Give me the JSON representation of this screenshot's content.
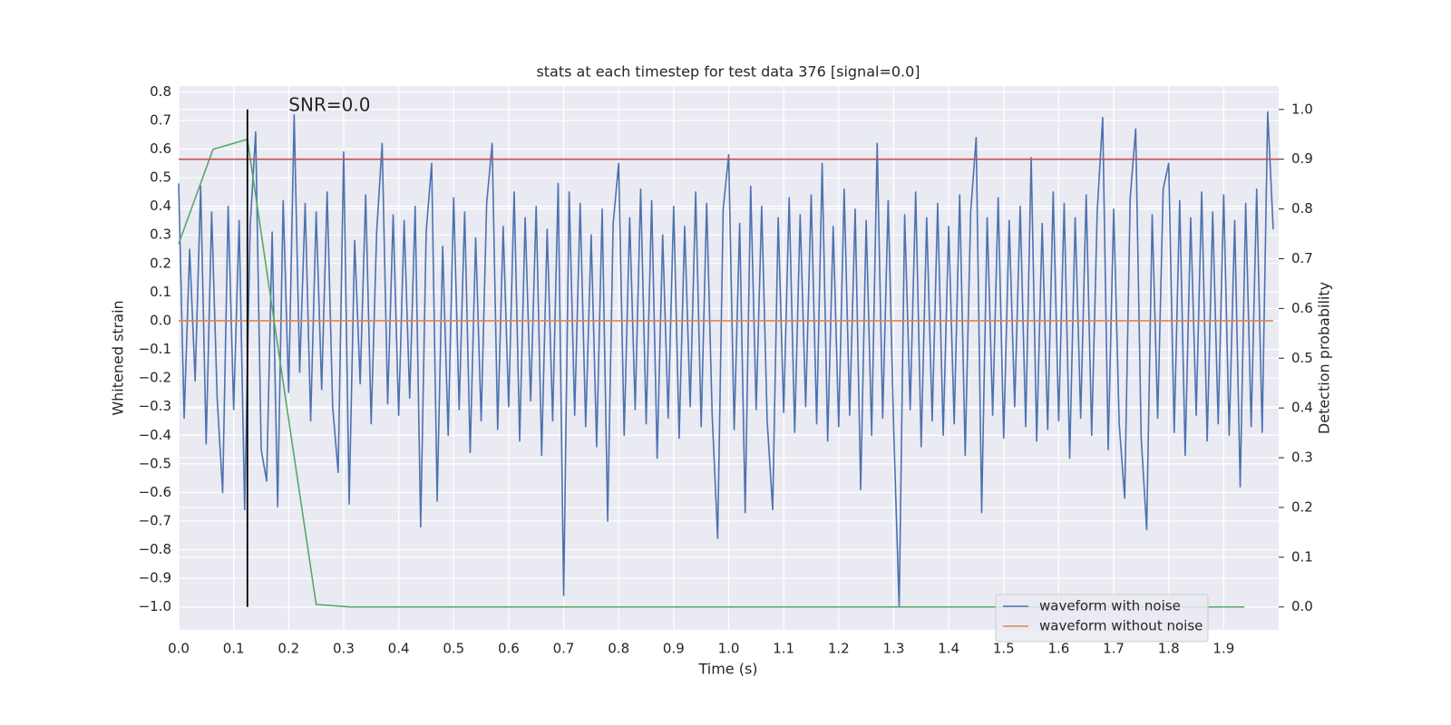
{
  "chart_data": {
    "type": "line",
    "title": "stats at each timestep for test data 376 [signal=0.0]",
    "xlabel": "Time (s)",
    "ylabel": "Whitened strain",
    "y2label": "Detection probability",
    "xlim": [
      0,
      2.0
    ],
    "ylim": [
      -1.08,
      0.82
    ],
    "y2lim": [
      -0.046,
      1.047
    ],
    "xticks": [
      {
        "value": 0,
        "label": "0.0"
      },
      0.1,
      0.2,
      0.3,
      0.4,
      0.5,
      0.6,
      0.7,
      0.8,
      0.9,
      {
        "value": 1,
        "label": "1.0"
      },
      1.1,
      1.2,
      1.3,
      1.4,
      1.5,
      1.6,
      1.7,
      1.8,
      1.9
    ],
    "yticks": [
      {
        "value": -1,
        "label": "−1.0"
      },
      {
        "value": -0.9,
        "label": "−0.9"
      },
      {
        "value": -0.8,
        "label": "−0.8"
      },
      {
        "value": -0.7,
        "label": "−0.7"
      },
      {
        "value": -0.6,
        "label": "−0.6"
      },
      {
        "value": -0.5,
        "label": "−0.5"
      },
      {
        "value": -0.4,
        "label": "−0.4"
      },
      {
        "value": -0.3,
        "label": "−0.3"
      },
      {
        "value": -0.2,
        "label": "−0.2"
      },
      {
        "value": -0.1,
        "label": "−0.1"
      },
      {
        "value": 0,
        "label": "0.0"
      },
      0.1,
      0.2,
      0.3,
      0.4,
      0.5,
      0.6,
      0.7,
      0.8
    ],
    "y2ticks": [
      {
        "value": 0,
        "label": "0.0"
      },
      0.1,
      0.2,
      0.3,
      0.4,
      0.5,
      0.6,
      0.7,
      0.8,
      0.9,
      {
        "value": 1,
        "label": "1.0"
      }
    ],
    "grid": true,
    "legend": "lower right",
    "series": [
      {
        "name": "waveform with noise",
        "color": "#4c72b0",
        "x": [
          0,
          0.01,
          0.02,
          0.03,
          0.04,
          0.05,
          0.06,
          0.07,
          0.08,
          0.09,
          0.1,
          0.11,
          0.12,
          0.13,
          0.14,
          0.15,
          0.16,
          0.17,
          0.18,
          0.19,
          0.2,
          0.21,
          0.22,
          0.23,
          0.24,
          0.25,
          0.26,
          0.27,
          0.28,
          0.29,
          0.3,
          0.31,
          0.32,
          0.33,
          0.34,
          0.35,
          0.36,
          0.37,
          0.38,
          0.39,
          0.4,
          0.41,
          0.42,
          0.43,
          0.44,
          0.45,
          0.46,
          0.47,
          0.48,
          0.49,
          0.5,
          0.51,
          0.52,
          0.53,
          0.54,
          0.55,
          0.56,
          0.57,
          0.58,
          0.59,
          0.6,
          0.61,
          0.62,
          0.63,
          0.64,
          0.65,
          0.66,
          0.67,
          0.68,
          0.69,
          0.7,
          0.71,
          0.72,
          0.73,
          0.74,
          0.75,
          0.76,
          0.77,
          0.78,
          0.79,
          0.8,
          0.81,
          0.82,
          0.83,
          0.84,
          0.85,
          0.86,
          0.87,
          0.88,
          0.89,
          0.9,
          0.91,
          0.92,
          0.93,
          0.94,
          0.95,
          0.96,
          0.97,
          0.98,
          0.99,
          1,
          1.01,
          1.02,
          1.03,
          1.04,
          1.05,
          1.06,
          1.07,
          1.08,
          1.09,
          1.1,
          1.11,
          1.12,
          1.13,
          1.14,
          1.15,
          1.16,
          1.17,
          1.18,
          1.19,
          1.2,
          1.21,
          1.22,
          1.23,
          1.24,
          1.25,
          1.26,
          1.27,
          1.28,
          1.29,
          1.3,
          1.31,
          1.32,
          1.33,
          1.34,
          1.35,
          1.36,
          1.37,
          1.38,
          1.39,
          1.4,
          1.41,
          1.42,
          1.43,
          1.44,
          1.45,
          1.46,
          1.47,
          1.48,
          1.49,
          1.5,
          1.51,
          1.52,
          1.53,
          1.54,
          1.55,
          1.56,
          1.57,
          1.58,
          1.59,
          1.6,
          1.61,
          1.62,
          1.63,
          1.64,
          1.65,
          1.66,
          1.67,
          1.68,
          1.69,
          1.7,
          1.71,
          1.72,
          1.73,
          1.74,
          1.75,
          1.76,
          1.77,
          1.78,
          1.79,
          1.8,
          1.81,
          1.82,
          1.83,
          1.84,
          1.85,
          1.86,
          1.87,
          1.88,
          1.89,
          1.9,
          1.91,
          1.92,
          1.93,
          1.94,
          1.95,
          1.96,
          1.97,
          1.98,
          1.99
        ],
        "values": [
          0.48,
          -0.34,
          0.25,
          -0.21,
          0.47,
          -0.43,
          0.38,
          -0.27,
          -0.6,
          0.4,
          -0.31,
          0.35,
          -0.66,
          0.33,
          0.66,
          -0.45,
          -0.56,
          0.31,
          -0.65,
          0.42,
          -0.25,
          0.72,
          -0.18,
          0.41,
          -0.35,
          0.38,
          -0.24,
          0.45,
          -0.3,
          -0.53,
          0.59,
          -0.64,
          0.28,
          -0.22,
          0.44,
          -0.36,
          0.31,
          0.62,
          -0.29,
          0.37,
          -0.33,
          0.35,
          -0.27,
          0.4,
          -0.72,
          0.31,
          0.55,
          -0.63,
          0.26,
          -0.4,
          0.43,
          -0.31,
          0.38,
          -0.46,
          0.29,
          -0.35,
          0.41,
          0.62,
          -0.38,
          0.33,
          -0.3,
          0.45,
          -0.42,
          0.36,
          -0.28,
          0.4,
          -0.47,
          0.32,
          -0.35,
          0.48,
          -0.96,
          0.45,
          -0.33,
          0.41,
          -0.37,
          0.3,
          -0.44,
          0.39,
          -0.7,
          0.34,
          0.55,
          -0.4,
          0.36,
          -0.31,
          0.46,
          -0.36,
          0.42,
          -0.48,
          0.3,
          -0.34,
          0.4,
          -0.41,
          0.33,
          -0.3,
          0.45,
          -0.37,
          0.41,
          -0.33,
          -0.76,
          0.39,
          0.58,
          -0.38,
          0.34,
          -0.67,
          0.47,
          -0.31,
          0.4,
          -0.35,
          -0.66,
          0.36,
          -0.32,
          0.43,
          -0.39,
          0.37,
          -0.3,
          0.44,
          -0.36,
          0.55,
          -0.42,
          0.33,
          -0.37,
          0.46,
          -0.33,
          0.39,
          -0.59,
          0.35,
          -0.4,
          0.62,
          -0.34,
          0.42,
          -0.38,
          -1.0,
          0.37,
          -0.31,
          0.45,
          -0.44,
          0.36,
          -0.35,
          0.41,
          -0.4,
          0.33,
          -0.36,
          0.44,
          -0.47,
          0.38,
          0.64,
          -0.67,
          0.36,
          -0.33,
          0.43,
          -0.41,
          0.35,
          -0.3,
          0.4,
          -0.37,
          0.57,
          -0.42,
          0.34,
          -0.38,
          0.45,
          -0.35,
          0.41,
          -0.48,
          0.36,
          -0.34,
          0.44,
          -0.4,
          0.38,
          0.71,
          -0.45,
          0.39,
          -0.36,
          -0.62,
          0.43,
          0.67,
          -0.41,
          -0.73,
          0.37,
          -0.34,
          0.46,
          0.55,
          -0.39,
          0.42,
          -0.47,
          0.36,
          -0.33,
          0.45,
          -0.42,
          0.38,
          -0.36,
          0.44,
          -0.4,
          0.35,
          -0.58,
          0.41,
          -0.37,
          0.46,
          -0.39,
          0.73,
          0.32
        ]
      },
      {
        "name": "waveform without noise",
        "color": "#dd8452",
        "x": [
          0,
          1.99
        ],
        "values": [
          0,
          0
        ]
      },
      {
        "color": "#55a868",
        "axis": "y2",
        "x": [
          0,
          0.0625,
          0.125,
          0.1875,
          0.25,
          0.3125,
          0.375,
          0.4375,
          0.5,
          0.5625,
          0.625,
          0.6875,
          0.75,
          0.8125,
          0.875,
          0.9375,
          1,
          1.0625,
          1.125,
          1.1875,
          1.25,
          1.3125,
          1.375,
          1.4375,
          1.5,
          1.5625,
          1.625,
          1.6875,
          1.75,
          1.8125,
          1.875,
          1.9375
        ],
        "values": [
          0.73,
          0.92,
          0.94,
          0.47,
          0.005,
          0,
          0,
          0,
          0,
          0,
          0,
          0,
          0,
          0,
          0,
          0,
          0,
          0,
          0,
          0,
          0,
          0,
          0,
          0,
          0,
          0,
          0,
          0,
          0,
          0,
          0,
          0
        ]
      }
    ],
    "hlines": [
      {
        "value": 0.9,
        "axis": "y2",
        "color": "#c44e52"
      }
    ],
    "vlines": [
      {
        "value": 0.125,
        "axis": "y2",
        "span": [
          0,
          1
        ],
        "color": "#000000"
      }
    ],
    "annotations": [
      {
        "text": "SNR=0.0",
        "x": 0.2,
        "y": 0.75
      }
    ]
  }
}
